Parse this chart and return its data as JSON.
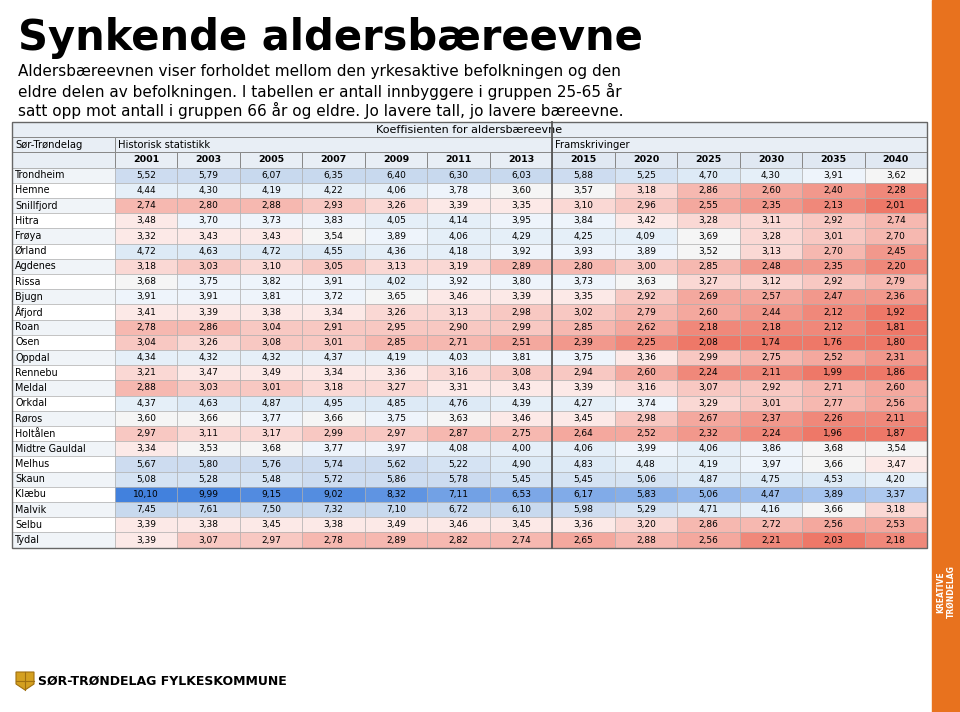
{
  "title": "Synkende aldersbæreevne",
  "subtitle_lines": [
    "Aldersbæreevnen viser forholdet mellom den yrkesaktive befolkningen og den",
    "eldre delen av befolkningen. I tabellen er antall innbyggere i gruppen 25-65 år",
    "satt opp mot antall i gruppen 66 år og eldre. Jo lavere tall, jo lavere bæreevne."
  ],
  "table_title": "Koeffisienten for aldersbæreevne",
  "col_header_1": "Sør-Trøndelag",
  "col_header_2": "Historisk statistikk",
  "col_header_3": "Framskrivinger",
  "years": [
    "2001",
    "2003",
    "2005",
    "2007",
    "2009",
    "2011",
    "2013",
    "2015",
    "2020",
    "2025",
    "2030",
    "2035",
    "2040"
  ],
  "municipalities": [
    "Trondheim",
    "Hemne",
    "Snillfjord",
    "Hitra",
    "Frøya",
    "Ørland",
    "Agdenes",
    "Rissa",
    "Bjugn",
    "Åfjord",
    "Roan",
    "Osen",
    "Oppdal",
    "Rennebu",
    "Meldal",
    "Orkdal",
    "Røros",
    "Holtålen",
    "Midtre Gauldal",
    "Melhus",
    "Skaun",
    "Klæbu",
    "Malvik",
    "Selbu",
    "Tydal"
  ],
  "data": [
    [
      5.52,
      5.79,
      6.07,
      6.35,
      6.4,
      6.3,
      6.03,
      5.88,
      5.25,
      4.7,
      4.3,
      3.91,
      3.62
    ],
    [
      4.44,
      4.3,
      4.19,
      4.22,
      4.06,
      3.78,
      3.6,
      3.57,
      3.18,
      2.86,
      2.6,
      2.4,
      2.28
    ],
    [
      2.74,
      2.8,
      2.88,
      2.93,
      3.26,
      3.39,
      3.35,
      3.1,
      2.96,
      2.55,
      2.35,
      2.13,
      2.01
    ],
    [
      3.48,
      3.7,
      3.73,
      3.83,
      4.05,
      4.14,
      3.95,
      3.84,
      3.42,
      3.28,
      3.11,
      2.92,
      2.74
    ],
    [
      3.32,
      3.43,
      3.43,
      3.54,
      3.89,
      4.06,
      4.29,
      4.25,
      4.09,
      3.69,
      3.28,
      3.01,
      2.7
    ],
    [
      4.72,
      4.63,
      4.72,
      4.55,
      4.36,
      4.18,
      3.92,
      3.93,
      3.89,
      3.52,
      3.13,
      2.7,
      2.45
    ],
    [
      3.18,
      3.03,
      3.1,
      3.05,
      3.13,
      3.19,
      2.89,
      2.8,
      3.0,
      2.85,
      2.48,
      2.35,
      2.2
    ],
    [
      3.68,
      3.75,
      3.82,
      3.91,
      4.02,
      3.92,
      3.8,
      3.73,
      3.63,
      3.27,
      3.12,
      2.92,
      2.79
    ],
    [
      3.91,
      3.91,
      3.81,
      3.72,
      3.65,
      3.46,
      3.39,
      3.35,
      2.92,
      2.69,
      2.57,
      2.47,
      2.36
    ],
    [
      3.41,
      3.39,
      3.38,
      3.34,
      3.26,
      3.13,
      2.98,
      3.02,
      2.79,
      2.6,
      2.44,
      2.12,
      1.92
    ],
    [
      2.78,
      2.86,
      3.04,
      2.91,
      2.95,
      2.9,
      2.99,
      2.85,
      2.62,
      2.18,
      2.18,
      2.12,
      1.81
    ],
    [
      3.04,
      3.26,
      3.08,
      3.01,
      2.85,
      2.71,
      2.51,
      2.39,
      2.25,
      2.08,
      1.74,
      1.76,
      1.8
    ],
    [
      4.34,
      4.32,
      4.32,
      4.37,
      4.19,
      4.03,
      3.81,
      3.75,
      3.36,
      2.99,
      2.75,
      2.52,
      2.31
    ],
    [
      3.21,
      3.47,
      3.49,
      3.34,
      3.36,
      3.16,
      3.08,
      2.94,
      2.6,
      2.24,
      2.11,
      1.99,
      1.86
    ],
    [
      2.88,
      3.03,
      3.01,
      3.18,
      3.27,
      3.31,
      3.43,
      3.39,
      3.16,
      3.07,
      2.92,
      2.71,
      2.6
    ],
    [
      4.37,
      4.63,
      4.87,
      4.95,
      4.85,
      4.76,
      4.39,
      4.27,
      3.74,
      3.29,
      3.01,
      2.77,
      2.56
    ],
    [
      3.6,
      3.66,
      3.77,
      3.66,
      3.75,
      3.63,
      3.46,
      3.45,
      2.98,
      2.67,
      2.37,
      2.26,
      2.11
    ],
    [
      2.97,
      3.11,
      3.17,
      2.99,
      2.97,
      2.87,
      2.75,
      2.64,
      2.52,
      2.32,
      2.24,
      1.96,
      1.87
    ],
    [
      3.34,
      3.53,
      3.68,
      3.77,
      3.97,
      4.08,
      4.0,
      4.06,
      3.99,
      4.06,
      3.86,
      3.68,
      3.54
    ],
    [
      5.67,
      5.8,
      5.76,
      5.74,
      5.62,
      5.22,
      4.9,
      4.83,
      4.48,
      4.19,
      3.97,
      3.66,
      3.47
    ],
    [
      5.08,
      5.28,
      5.48,
      5.72,
      5.86,
      5.78,
      5.45,
      5.45,
      5.06,
      4.87,
      4.75,
      4.53,
      4.2
    ],
    [
      10.1,
      9.99,
      9.15,
      9.02,
      8.32,
      7.11,
      6.53,
      6.17,
      5.83,
      5.06,
      4.47,
      3.89,
      3.37
    ],
    [
      7.45,
      7.61,
      7.5,
      7.32,
      7.1,
      6.72,
      6.1,
      5.98,
      5.29,
      4.71,
      4.16,
      3.66,
      3.18
    ],
    [
      3.39,
      3.38,
      3.45,
      3.38,
      3.49,
      3.46,
      3.45,
      3.36,
      3.2,
      2.86,
      2.72,
      2.56,
      2.53
    ],
    [
      3.39,
      3.07,
      2.97,
      2.78,
      2.89,
      2.82,
      2.74,
      2.65,
      2.88,
      2.56,
      2.21,
      2.03,
      2.18
    ]
  ],
  "footer_text": "SØR-TRØNDELAG FYLKESKOMMUNE",
  "bg_color": "#ffffff",
  "orange_bar_color": "#e8721e",
  "hist_cols": 7,
  "fram_cols": 6
}
